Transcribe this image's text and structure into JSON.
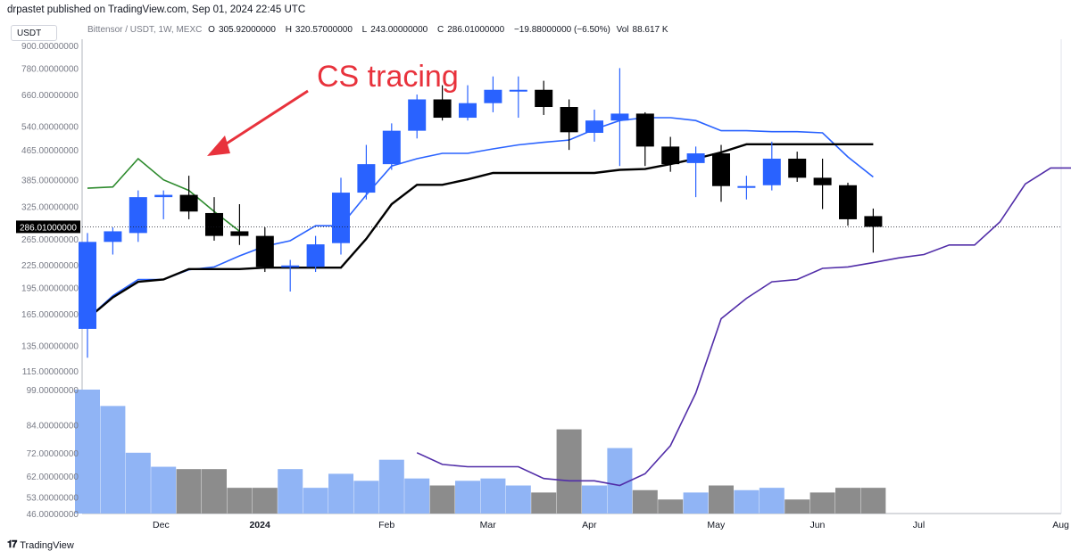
{
  "header": {
    "caption": "drpastet published on TradingView.com, Sep 01, 2024 22:45 UTC",
    "currency_badge": "USDT"
  },
  "legend": {
    "symbol": "Bittensor / USDT, 1W, MEXC",
    "open_label": "O",
    "open": "305.92000000",
    "high_label": "H",
    "high": "320.57000000",
    "low_label": "L",
    "low": "243.00000000",
    "close_label": "C",
    "close": "286.01000000",
    "change": "−19.88000000 (−6.50%)",
    "vol_label": "Vol",
    "vol": "88.617 K"
  },
  "annotation": {
    "text": "CS tracing",
    "color": "#e8323c"
  },
  "footer": {
    "brand": "TradingView",
    "icon": "tradingview-logo-icon"
  },
  "colors": {
    "up": "#2962ff",
    "down": "#000000",
    "vol_up": "#90b4f5",
    "vol_down": "#8c8c8c",
    "green": "#2e8b2e",
    "blue_line": "#2962ff",
    "purple": "#512da8",
    "black_line": "#000000"
  },
  "chart_data": {
    "type": "candlestick",
    "price_scale": "log",
    "price_axis_labels": [
      "900.00000000",
      "780.00000000",
      "660.00000000",
      "540.00000000",
      "465.00000000",
      "385.00000000",
      "325.00000000",
      "265.00000000",
      "225.00000000",
      "195.00000000",
      "165.00000000",
      "135.00000000",
      "115.00000000",
      "99.00000000",
      "84.00000000",
      "72.00000000",
      "62.00000000",
      "53.00000000",
      "46.00000000"
    ],
    "last_price_label": "286.01000000",
    "time_axis_labels": [
      "Dec",
      "2024",
      "Feb",
      "Mar",
      "Apr",
      "May",
      "Jun",
      "Jul",
      "Aug"
    ],
    "candles": [
      {
        "date": "2023-11-13",
        "o": 150,
        "h": 275,
        "l": 125,
        "c": 260
      },
      {
        "date": "2023-11-20",
        "o": 260,
        "h": 285,
        "l": 240,
        "c": 278
      },
      {
        "date": "2023-11-27",
        "o": 275,
        "h": 360,
        "l": 260,
        "c": 345
      },
      {
        "date": "2023-12-04",
        "o": 345,
        "h": 360,
        "l": 300,
        "c": 350
      },
      {
        "date": "2023-12-11",
        "o": 350,
        "h": 395,
        "l": 300,
        "c": 315
      },
      {
        "date": "2023-12-18",
        "o": 312,
        "h": 345,
        "l": 262,
        "c": 270
      },
      {
        "date": "2023-12-25",
        "o": 278,
        "h": 330,
        "l": 255,
        "c": 270
      },
      {
        "date": "2024-01-01",
        "o": 270,
        "h": 285,
        "l": 215,
        "c": 222
      },
      {
        "date": "2024-01-08",
        "o": 222,
        "h": 232,
        "l": 190,
        "c": 224
      },
      {
        "date": "2024-01-15",
        "o": 222,
        "h": 270,
        "l": 215,
        "c": 256
      },
      {
        "date": "2024-01-22",
        "o": 258,
        "h": 390,
        "l": 240,
        "c": 355
      },
      {
        "date": "2024-01-29",
        "o": 355,
        "h": 480,
        "l": 340,
        "c": 425
      },
      {
        "date": "2024-02-05",
        "o": 425,
        "h": 550,
        "l": 410,
        "c": 525
      },
      {
        "date": "2024-02-12",
        "o": 525,
        "h": 660,
        "l": 500,
        "c": 640
      },
      {
        "date": "2024-02-19",
        "o": 640,
        "h": 700,
        "l": 560,
        "c": 570
      },
      {
        "date": "2024-02-26",
        "o": 570,
        "h": 700,
        "l": 560,
        "c": 625
      },
      {
        "date": "2024-03-04",
        "o": 625,
        "h": 740,
        "l": 590,
        "c": 680
      },
      {
        "date": "2024-03-11",
        "o": 680,
        "h": 740,
        "l": 570,
        "c": 680
      },
      {
        "date": "2024-03-18",
        "o": 680,
        "h": 720,
        "l": 580,
        "c": 610
      },
      {
        "date": "2024-03-25",
        "o": 610,
        "h": 640,
        "l": 465,
        "c": 520
      },
      {
        "date": "2024-04-01",
        "o": 518,
        "h": 600,
        "l": 490,
        "c": 560
      },
      {
        "date": "2024-04-08",
        "o": 560,
        "h": 780,
        "l": 420,
        "c": 585
      },
      {
        "date": "2024-04-15",
        "o": 585,
        "h": 590,
        "l": 420,
        "c": 475
      },
      {
        "date": "2024-04-22",
        "o": 475,
        "h": 505,
        "l": 405,
        "c": 425
      },
      {
        "date": "2024-04-29",
        "o": 428,
        "h": 475,
        "l": 345,
        "c": 455
      },
      {
        "date": "2024-05-06",
        "o": 455,
        "h": 480,
        "l": 335,
        "c": 370
      },
      {
        "date": "2024-05-13",
        "o": 370,
        "h": 395,
        "l": 340,
        "c": 370
      },
      {
        "date": "2024-05-20",
        "o": 372,
        "h": 490,
        "l": 360,
        "c": 440
      },
      {
        "date": "2024-05-27",
        "o": 440,
        "h": 460,
        "l": 380,
        "c": 390
      },
      {
        "date": "2024-06-03",
        "o": 390,
        "h": 440,
        "l": 320,
        "c": 372
      },
      {
        "date": "2024-06-10",
        "o": 372,
        "h": 378,
        "l": 288,
        "c": 300
      },
      {
        "date": "2024-06-17",
        "o": 306,
        "h": 321,
        "l": 243,
        "c": 286
      }
    ],
    "volume": [
      {
        "v": 99,
        "up": true
      },
      {
        "v": 92,
        "up": true
      },
      {
        "v": 72,
        "up": true
      },
      {
        "v": 66,
        "up": true
      },
      {
        "v": 65,
        "up": false
      },
      {
        "v": 65,
        "up": false
      },
      {
        "v": 57,
        "up": false
      },
      {
        "v": 57,
        "up": false
      },
      {
        "v": 65,
        "up": true
      },
      {
        "v": 57,
        "up": true
      },
      {
        "v": 63,
        "up": true
      },
      {
        "v": 60,
        "up": true
      },
      {
        "v": 69,
        "up": true
      },
      {
        "v": 61,
        "up": true
      },
      {
        "v": 58,
        "up": false
      },
      {
        "v": 60,
        "up": true
      },
      {
        "v": 61,
        "up": true
      },
      {
        "v": 58,
        "up": true
      },
      {
        "v": 55,
        "up": false
      },
      {
        "v": 82,
        "up": false
      },
      {
        "v": 58,
        "up": true
      },
      {
        "v": 74,
        "up": true
      },
      {
        "v": 56,
        "up": false
      },
      {
        "v": 52,
        "up": false
      },
      {
        "v": 55,
        "up": true
      },
      {
        "v": 58,
        "up": false
      },
      {
        "v": 56,
        "up": true
      },
      {
        "v": 57,
        "up": true
      },
      {
        "v": 52,
        "up": false
      },
      {
        "v": 55,
        "up": false
      },
      {
        "v": 57,
        "up": false
      },
      {
        "v": 57,
        "up": false
      }
    ],
    "series": [
      {
        "color": "#2e8b2e",
        "points": [
          [
            0,
            365
          ],
          [
            1,
            368
          ],
          [
            2,
            440
          ],
          [
            3,
            385
          ],
          [
            4,
            360
          ],
          [
            5,
            315
          ],
          [
            6,
            278
          ]
        ]
      },
      {
        "color": "#2962ff",
        "points": [
          [
            0,
            160
          ],
          [
            1,
            185
          ],
          [
            2,
            205
          ],
          [
            3,
            205
          ],
          [
            4,
            218
          ],
          [
            5,
            222
          ],
          [
            6,
            238
          ],
          [
            7,
            253
          ],
          [
            8,
            262
          ],
          [
            9,
            288
          ],
          [
            10,
            288
          ],
          [
            11,
            350
          ],
          [
            12,
            420
          ],
          [
            13,
            440
          ],
          [
            14,
            455
          ],
          [
            15,
            455
          ],
          [
            16,
            468
          ],
          [
            17,
            480
          ],
          [
            18,
            488
          ],
          [
            19,
            495
          ],
          [
            20,
            530
          ],
          [
            21,
            560
          ],
          [
            22,
            570
          ],
          [
            23,
            570
          ],
          [
            24,
            560
          ],
          [
            25,
            525
          ],
          [
            26,
            525
          ],
          [
            27,
            522
          ],
          [
            28,
            522
          ],
          [
            29,
            518
          ],
          [
            30,
            445
          ],
          [
            31,
            392
          ]
        ]
      },
      {
        "color": "#000000",
        "points": [
          [
            0,
            160
          ],
          [
            1,
            183
          ],
          [
            2,
            202
          ],
          [
            3,
            205
          ],
          [
            4,
            219
          ],
          [
            5,
            219
          ],
          [
            6,
            219
          ],
          [
            7,
            221
          ],
          [
            8,
            221
          ],
          [
            9,
            221
          ],
          [
            10,
            221
          ],
          [
            11,
            265
          ],
          [
            12,
            330
          ],
          [
            13,
            373
          ],
          [
            14,
            373
          ],
          [
            15,
            386
          ],
          [
            16,
            402
          ],
          [
            17,
            402
          ],
          [
            18,
            402
          ],
          [
            19,
            402
          ],
          [
            20,
            402
          ],
          [
            21,
            410
          ],
          [
            22,
            412
          ],
          [
            23,
            425
          ],
          [
            24,
            440
          ],
          [
            25,
            458
          ],
          [
            26,
            482
          ],
          [
            27,
            482
          ],
          [
            28,
            482
          ],
          [
            29,
            482
          ],
          [
            30,
            482
          ],
          [
            31,
            482
          ]
        ]
      },
      {
        "color": "#512da8",
        "points": [
          [
            13,
            72
          ],
          [
            14,
            67
          ],
          [
            15,
            66
          ],
          [
            16,
            66
          ],
          [
            17,
            66
          ],
          [
            18,
            61
          ],
          [
            19,
            60
          ],
          [
            20,
            60
          ],
          [
            21,
            58
          ],
          [
            22,
            63
          ],
          [
            23,
            75
          ],
          [
            24,
            100
          ],
          [
            25,
            160
          ],
          [
            26,
            182
          ],
          [
            27,
            202
          ],
          [
            28,
            205
          ],
          [
            29,
            220
          ],
          [
            30,
            222
          ],
          [
            31,
            228
          ],
          [
            32,
            235
          ],
          [
            33,
            240
          ],
          [
            34,
            255
          ],
          [
            35,
            255
          ],
          [
            36,
            295
          ],
          [
            37,
            375
          ],
          [
            38,
            415
          ],
          [
            39,
            415
          ]
        ]
      }
    ],
    "grid": false
  }
}
